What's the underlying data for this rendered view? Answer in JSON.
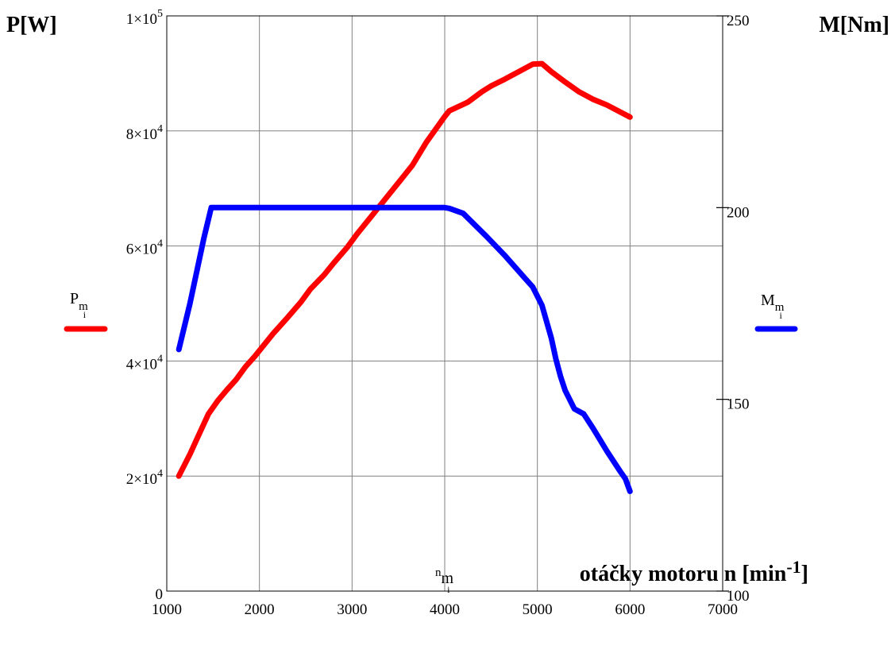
{
  "chart_data": {
    "type": "line",
    "left_axis_title": "P[W]",
    "right_axis_title": "M[Nm]",
    "xlabel": "otáčky motoru n [min",
    "xlabel_sup": "-1",
    "xlabel_end": "]",
    "x_symbol": {
      "base": "n",
      "sub": "m",
      "subsub": "i"
    },
    "xlim": [
      1000,
      7000
    ],
    "x_ticks": [
      1000,
      2000,
      3000,
      4000,
      5000,
      6000,
      7000
    ],
    "x_tick_labels": [
      "1000",
      "2000",
      "3000",
      "4000",
      "5000",
      "6000",
      "7000"
    ],
    "ylim_left": [
      0,
      100000
    ],
    "y_left_ticks": [
      0,
      20000,
      40000,
      60000,
      80000,
      100000
    ],
    "y_left_tick_labels": [
      {
        "text": "0",
        "sup": ""
      },
      {
        "text": "2×10",
        "sup": "4"
      },
      {
        "text": "4×10",
        "sup": "4"
      },
      {
        "text": "6×10",
        "sup": "4"
      },
      {
        "text": "8×10",
        "sup": "4"
      },
      {
        "text": "1×10",
        "sup": "5"
      }
    ],
    "ylim_right": [
      100,
      250
    ],
    "y_right_ticks": [
      100,
      150,
      200,
      250
    ],
    "y_right_tick_labels": [
      "100",
      "150",
      "200",
      "250"
    ],
    "grid": true,
    "series": [
      {
        "name": "P",
        "legend": {
          "base": "P",
          "sub": "m",
          "subsub": "i",
          "position": "left"
        },
        "axis": "left",
        "color": "#ff0000",
        "x": [
          1130,
          1250,
          1350,
          1450,
          1550,
          1650,
          1750,
          1850,
          1950,
          2050,
          2150,
          2300,
          2450,
          2550,
          2700,
          2800,
          2950,
          3050,
          3200,
          3350,
          3500,
          3650,
          3800,
          4000,
          4050,
          4250,
          4400,
          4500,
          4650,
          4800,
          4950,
          5050,
          5150,
          5300,
          5450,
          5600,
          5750,
          6000
        ],
        "y": [
          20000,
          23800,
          27300,
          30800,
          33100,
          35000,
          36800,
          39000,
          40800,
          42800,
          44800,
          47500,
          50300,
          52500,
          55000,
          57000,
          59800,
          62000,
          65000,
          68000,
          71000,
          74000,
          78000,
          82500,
          83500,
          85000,
          86800,
          87800,
          89000,
          90300,
          91600,
          91700,
          90300,
          88500,
          86800,
          85500,
          84500,
          82400
        ]
      },
      {
        "name": "M",
        "legend": {
          "base": "M",
          "sub": "m",
          "subsub": "i",
          "position": "right"
        },
        "axis": "right",
        "color": "#0000ff",
        "x": [
          1130,
          1250,
          1400,
          1480,
          1500,
          1550,
          2000,
          3000,
          4000,
          4050,
          4200,
          4450,
          4650,
          4850,
          4950,
          5050,
          5150,
          5200,
          5250,
          5300,
          5400,
          5500,
          5600,
          5750,
          5900,
          5950,
          6000
        ],
        "y": [
          163,
          175,
          192,
          200,
          200,
          200,
          200,
          200,
          200,
          199.8,
          198.5,
          192.5,
          187.5,
          182,
          179.3,
          174.5,
          166,
          160.5,
          156,
          152.3,
          147.5,
          146.2,
          142.5,
          136.5,
          131,
          129.3,
          126
        ]
      }
    ]
  }
}
